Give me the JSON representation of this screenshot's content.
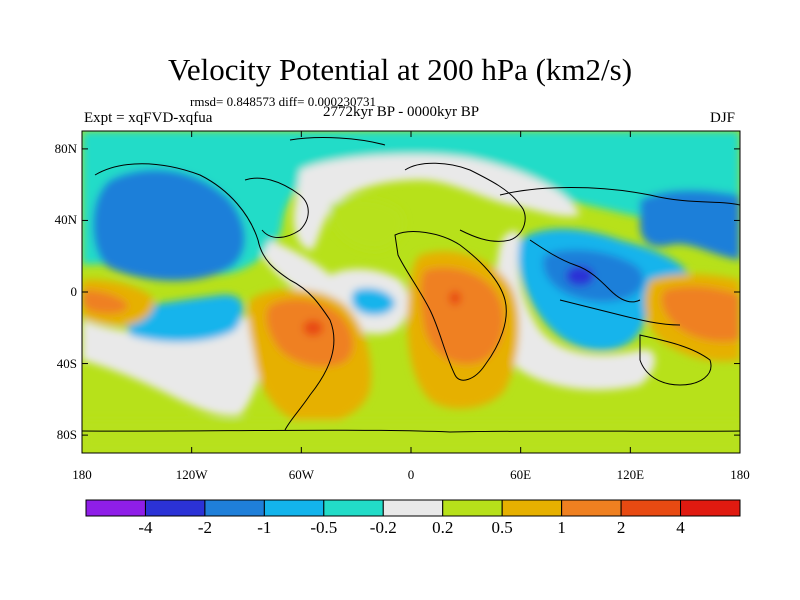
{
  "title": "Velocity Potential at 200 hPa (km2/s)",
  "stats": "rmsd= 0.848573 diff= 0.000230731",
  "experiment": "Expt = xqFVD-xqfua",
  "period": "2772kyr BP - 0000kyr BP",
  "season": "DJF",
  "lat_ticks": [
    "80N",
    "40N",
    "0",
    "40S",
    "80S"
  ],
  "lon_ticks": [
    "180",
    "120W",
    "60W",
    "0",
    "60E",
    "120E",
    "180"
  ],
  "colorbar": {
    "labels": [
      "-4",
      "-2",
      "-1",
      "-0.5",
      "-0.2",
      "0.2",
      "0.5",
      "1",
      "2",
      "4"
    ],
    "colors": [
      "#8f1ee8",
      "#2b32d6",
      "#1f7fd9",
      "#13b4ec",
      "#22dcc8",
      "#e9e9e9",
      "#b7e11a",
      "#e6b000",
      "#ef8020",
      "#e84a12",
      "#e01a10"
    ]
  },
  "chart_data": {
    "type": "heatmap",
    "title": "Velocity Potential at 200 hPa (km2/s)",
    "x_range": [
      -180,
      180
    ],
    "y_range": [
      -90,
      90
    ],
    "levels": [
      -4,
      -2,
      -1,
      -0.5,
      -0.2,
      0.2,
      0.5,
      1,
      2,
      4
    ],
    "features": [
      {
        "label": "min",
        "lon": 95,
        "lat": 5,
        "value": -2.5
      },
      {
        "label": "max",
        "lon": -55,
        "lat": -10,
        "value": 2.5
      },
      {
        "label": "max",
        "lon": 25,
        "lat": -5,
        "value": 1.8
      },
      {
        "label": "max",
        "lon": 160,
        "lat": -5,
        "value": 1.5
      },
      {
        "label": "min",
        "lon": -130,
        "lat": 35,
        "value": -1.3
      },
      {
        "label": "min",
        "lon": 150,
        "lat": 40,
        "value": -1.2
      },
      {
        "label": "min",
        "lon": -30,
        "lat": -5,
        "value": -0.7
      },
      {
        "label": "max",
        "lon": -20,
        "lat": 45,
        "value": 0.5
      }
    ]
  }
}
